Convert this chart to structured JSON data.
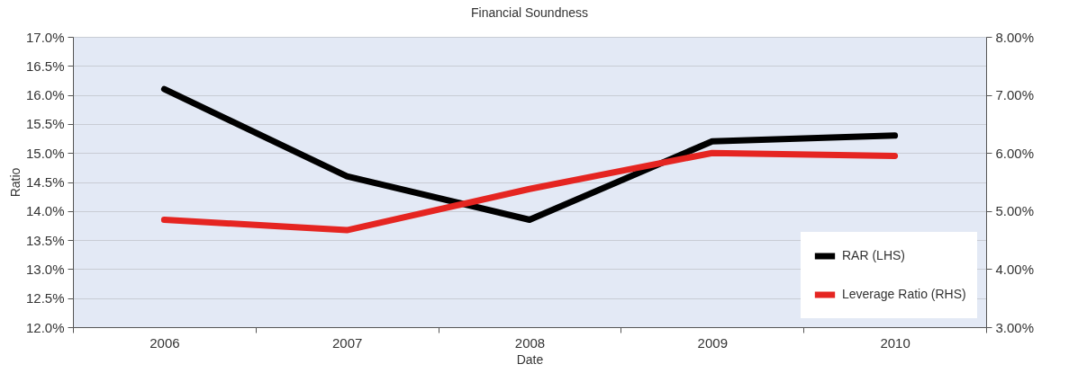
{
  "chart_data": {
    "type": "line",
    "title": "Financial Soundness",
    "xlabel": "Date",
    "ylabel": "Ratio",
    "categories": [
      "2006",
      "2007",
      "2008",
      "2009",
      "2010"
    ],
    "series": [
      {
        "name": "RAR (LHS)",
        "color": "#000000",
        "values": [
          16.1,
          14.6,
          13.85,
          15.2,
          15.3
        ]
      },
      {
        "name": "Leverage Ratio (RHS)",
        "color": "#e52521",
        "axis": "y2",
        "values": [
          4.85,
          4.67,
          5.38,
          6.0,
          5.95
        ]
      }
    ],
    "ylim": [
      12,
      17
    ],
    "yticks": [
      {
        "value": 12,
        "label": "12.0%"
      },
      {
        "value": 12.5,
        "label": "12.5%"
      },
      {
        "value": 13,
        "label": "13.0%"
      },
      {
        "value": 13.5,
        "label": "13.5%"
      },
      {
        "value": 14,
        "label": "14.0%"
      },
      {
        "value": 14.5,
        "label": "14.5%"
      },
      {
        "value": 15,
        "label": "15.0%"
      },
      {
        "value": 15.5,
        "label": "15.5%"
      },
      {
        "value": 16,
        "label": "16.0%"
      },
      {
        "value": 16.5,
        "label": "16.5%"
      },
      {
        "value": 17,
        "label": "17.0%"
      }
    ],
    "y2lim": [
      3,
      8
    ],
    "y2ticks": [
      {
        "value": 3,
        "label": "3.00%"
      },
      {
        "value": 4,
        "label": "4.00%"
      },
      {
        "value": 5,
        "label": "5.00%"
      },
      {
        "value": 6,
        "label": "6.00%"
      },
      {
        "value": 7,
        "label": "7.00%"
      },
      {
        "value": 8,
        "label": "8.00%"
      }
    ],
    "grid": "y",
    "legend": "bottom right",
    "line_style": "solid",
    "marker": "none"
  }
}
